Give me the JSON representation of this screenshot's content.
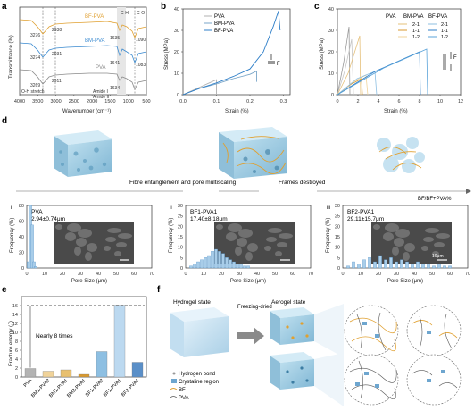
{
  "panels": {
    "a": {
      "label": "a",
      "ylabel": "Transmittance (%)",
      "xlabel": "Wavenumber (cm⁻¹)",
      "xticks": [
        "4000",
        "3500",
        "3000",
        "2500",
        "2000",
        "1500",
        "1000",
        "500"
      ],
      "series": [
        {
          "name": "BF-PVA",
          "color": "#e0a030"
        },
        {
          "name": "BM-PVA",
          "color": "#3a8ad0"
        },
        {
          "name": "PVA",
          "color": "#8a8a8a"
        }
      ],
      "peaks": [
        "3276",
        "2938",
        "3274",
        "2931",
        "3269",
        "2911",
        "1635",
        "1641",
        "1634",
        "1090",
        "1083",
        "C-H",
        "C-O",
        "O-H stretch",
        "Amide I",
        "Amide II"
      ]
    },
    "b": {
      "label": "b",
      "ylabel": "Stress (MPa)",
      "xlabel": "Strain (%)",
      "yticks": [
        "0",
        "10",
        "20",
        "30",
        "40"
      ],
      "xticks": [
        "0.0",
        "0.1",
        "0.2",
        "0.3"
      ],
      "legend": [
        "PVA",
        "BM-PVA",
        "BF-PVA"
      ],
      "inset_label": "F",
      "chart_data": {
        "type": "line",
        "xlim": [
          0,
          0.32
        ],
        "ylim": [
          0,
          40
        ],
        "series": [
          {
            "name": "PVA",
            "x": [
              0,
              0.1,
              0.1
            ],
            "y": [
              0,
              7,
              0
            ]
          },
          {
            "name": "BM-PVA",
            "x": [
              0,
              0.05,
              0.1,
              0.15,
              0.2,
              0.22,
              0.22
            ],
            "y": [
              0,
              3,
              5,
              7.5,
              9.5,
              11,
              6
            ]
          },
          {
            "name": "BF-PVA",
            "x": [
              0,
              0.05,
              0.1,
              0.15,
              0.2,
              0.24,
              0.27,
              0.285,
              0.29
            ],
            "y": [
              0,
              3,
              5.5,
              8.5,
              12,
              20,
              32,
              39,
              30
            ]
          }
        ]
      }
    },
    "c": {
      "label": "c",
      "ylabel": "Stress (MPa)",
      "xlabel": "Strain (%)",
      "yticks": [
        "0",
        "10",
        "20",
        "30",
        "40"
      ],
      "xticks": [
        "0",
        "2",
        "4",
        "6",
        "8",
        "10",
        "12"
      ],
      "legend_headers": [
        "PVA",
        "BM-PVA",
        "BF-PVA"
      ],
      "legend_items": [
        "2-1",
        "1-1",
        "1-2",
        "2-1",
        "1-1",
        "1-2"
      ],
      "inset_label": "F"
    },
    "d": {
      "label": "d",
      "arrow1_text": "Fibre entanglement and pore multiscaling",
      "arrow2_text": "Frames destroyed",
      "right_text": "BF/BF+PVA%",
      "histograms": [
        {
          "roman": "i",
          "title": "PVA",
          "size": "2.94±0.74μm",
          "color": "#5b9bd5",
          "scale": ""
        },
        {
          "roman": "ii",
          "title": "BF1-PVA1",
          "size": "17.40±8.18μm",
          "color": "#5b9bd5",
          "scale": ""
        },
        {
          "roman": "iii",
          "title": "BF2-PVA1",
          "size": "29.11±15.7μm",
          "color": "#5b9bd5",
          "scale": "10μm"
        }
      ],
      "hist_xlabel": "Pore Size (μm)",
      "hist_ylabel": "Frequency (%)",
      "hist_xticks": [
        "0",
        "10",
        "20",
        "30",
        "40",
        "50",
        "60",
        "70"
      ],
      "hist_yticks_i": [
        "0",
        "20",
        "40",
        "60",
        "80"
      ],
      "hist_yticks_ii": [
        "0",
        "5",
        "10",
        "15",
        "20",
        "25",
        "30"
      ],
      "hist_yticks_iii": [
        "0",
        "5",
        "10",
        "15",
        "20",
        "25",
        "30"
      ]
    },
    "e": {
      "label": "e",
      "ylabel": "Fracture energy (J)",
      "annotation": "Nearly 8 times",
      "yticks": [
        "0",
        "2",
        "4",
        "6",
        "8",
        "10",
        "12",
        "14",
        "16"
      ],
      "chart_data": {
        "type": "bar",
        "categories": [
          "PVA",
          "BM1-PVA2",
          "BM1-PVA1",
          "BM2-PVA1",
          "BF1-PVA2",
          "BF1-PVA1",
          "BF2-PVA1"
        ],
        "values": [
          1.9,
          1.3,
          1.6,
          0.6,
          5.7,
          16.1,
          3.3
        ],
        "ylim": [
          0,
          18
        ]
      }
    },
    "f": {
      "label": "f",
      "hydrogel": "Hydrogel state",
      "arrow": "Freezing-dried",
      "aerogel": "Aerogel state",
      "legend": [
        "Hydrogen bond",
        "Crystaline region",
        "BF",
        "PVA"
      ]
    }
  }
}
